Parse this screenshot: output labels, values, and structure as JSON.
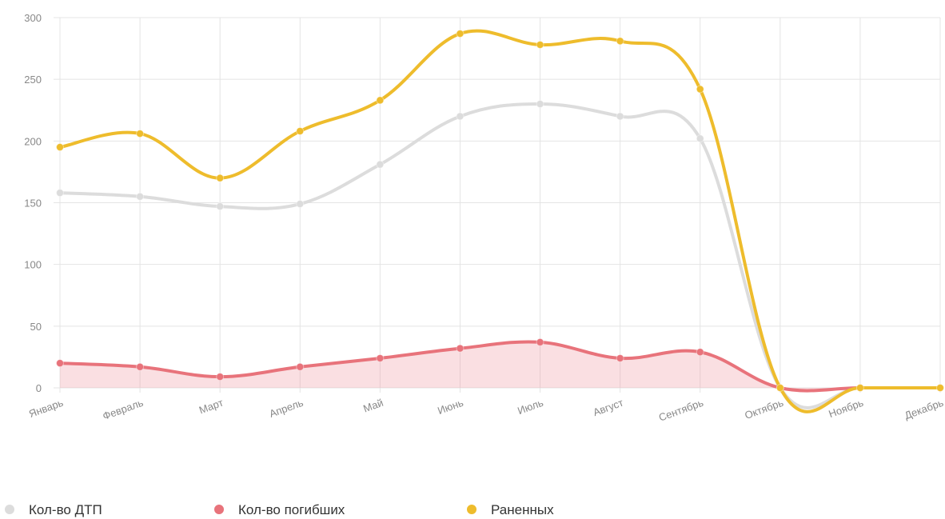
{
  "chart_data": {
    "type": "line",
    "categories": [
      "Январь",
      "Февраль",
      "Март",
      "Апрель",
      "Май",
      "Июнь",
      "Июль",
      "Август",
      "Сентябрь",
      "Октябрь",
      "Ноябрь",
      "Декабрь"
    ],
    "series": [
      {
        "name": "Кол-во ДТП",
        "color": "#dcdcdc",
        "values": [
          158,
          155,
          147,
          149,
          181,
          220,
          230,
          220,
          202,
          0,
          0,
          0
        ]
      },
      {
        "name": "Кол-во погибших",
        "color": "#e8737b",
        "values": [
          20,
          17,
          9,
          17,
          24,
          32,
          37,
          24,
          29,
          0,
          0,
          0
        ],
        "fill": "rgba(240,150,160,0.3)"
      },
      {
        "name": "Раненных",
        "color": "#eebc2c",
        "values": [
          195,
          206,
          170,
          208,
          233,
          287,
          278,
          281,
          242,
          0,
          0,
          0
        ]
      }
    ],
    "ylim": [
      0,
      300
    ],
    "yticks": [
      0,
      50,
      100,
      150,
      200,
      250,
      300
    ],
    "grid": true
  }
}
